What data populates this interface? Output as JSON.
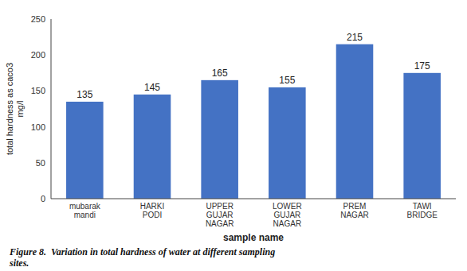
{
  "chart_data": {
    "type": "bar",
    "categories": [
      "mubarak\nmandi",
      "HARKI\nPODI",
      "UPPER\nGUJAR\nNAGAR",
      "LOWER\nGUJAR\nNAGAR",
      "PREM\nNAGAR",
      "TAWI\nBRIDGE"
    ],
    "values": [
      135,
      145,
      165,
      155,
      215,
      175
    ],
    "color": "#4472C4",
    "xlabel": "sample name",
    "ylabel": "total hardness as caco3\nmg/l",
    "ylim": [
      0,
      250
    ],
    "yticks": [
      0,
      50,
      100,
      150,
      200,
      250
    ],
    "grid": false,
    "data_labels": true,
    "caption": "Figure 8.  Variation in total hardness of water at different sampling\nsites."
  }
}
